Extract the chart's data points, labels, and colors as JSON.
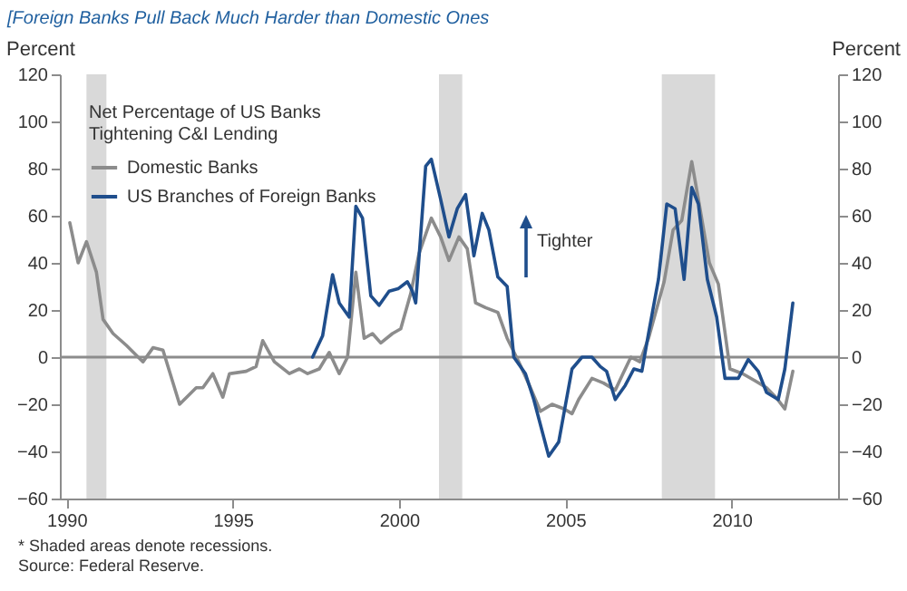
{
  "chart_data": {
    "type": "line",
    "title": "[Foreign Banks Pull Back Much Harder than Domestic Ones",
    "ylabel": "Percent",
    "y2label": "Percent",
    "legend_title": "Net Percentage of US Banks Tightening C&I Lending",
    "annotations": [
      "Tighter",
      "* Shaded areas denote recessions.",
      "Source: Federal Reserve."
    ],
    "xlim": [
      1989.8,
      2013.2
    ],
    "xticks": [
      1990,
      1995,
      2000,
      2005,
      2010
    ],
    "ylim": [
      -60,
      120
    ],
    "yticks": [
      -60,
      -40,
      -20,
      0,
      20,
      40,
      60,
      80,
      100,
      120
    ],
    "y2lim": [
      -60,
      120
    ],
    "y2ticks": [
      -60,
      -40,
      -20,
      0,
      20,
      40,
      60,
      80,
      100,
      120
    ],
    "grid": false,
    "legend": "top left",
    "marker": "none",
    "line_style": "solid",
    "ref_lines": [
      {
        "axis": "y",
        "value": 0,
        "color": "#8c8c8c"
      }
    ],
    "bands": [
      {
        "axis": "x",
        "from": 1990.6,
        "to": 1991.2,
        "color": "#d9d9d9"
      },
      {
        "axis": "x",
        "from": 2001.2,
        "to": 2001.9,
        "color": "#d9d9d9"
      },
      {
        "axis": "x",
        "from": 2007.9,
        "to": 2009.5,
        "color": "#d9d9d9"
      }
    ],
    "series": [
      {
        "name": "Domestic Banks",
        "color": "#8c8c8c",
        "x": [
          1990.1,
          1990.35,
          1990.6,
          1990.9,
          1991.1,
          1991.4,
          1991.8,
          1992.3,
          1992.6,
          1992.9,
          1993.4,
          1993.9,
          1994.1,
          1994.4,
          1994.7,
          1994.9,
          1995.4,
          1995.7,
          1995.9,
          1996.25,
          1996.7,
          1997.0,
          1997.25,
          1997.6,
          1997.9,
          1998.2,
          1998.45,
          1998.7,
          1998.95,
          1999.2,
          1999.45,
          1999.8,
          2000.05,
          2000.35,
          2000.6,
          2000.97,
          2001.25,
          2001.5,
          2001.8,
          2002.05,
          2002.3,
          2002.6,
          2002.97,
          2003.25,
          2003.6,
          2003.95,
          2004.25,
          2004.6,
          2004.97,
          2005.2,
          2005.4,
          2005.8,
          2006.15,
          2006.5,
          2006.7,
          2006.97,
          2007.24,
          2007.5,
          2007.97,
          2008.24,
          2008.5,
          2008.8,
          2009.0,
          2009.33,
          2009.6,
          2009.95,
          2010.33,
          2010.7,
          2011.05,
          2011.33,
          2011.6,
          2011.84
        ],
        "values": [
          57,
          40,
          49,
          36,
          16,
          10,
          5,
          -2,
          4,
          3,
          -20,
          -13,
          -13,
          -7,
          -17,
          -7,
          -6,
          -4,
          7,
          -2,
          -7,
          -5,
          -7,
          -5,
          2,
          -7,
          0,
          36,
          8,
          10,
          6,
          10,
          12,
          27,
          44,
          59,
          51,
          41,
          51,
          46,
          23,
          21,
          19,
          8,
          -2,
          -13,
          -23,
          -20,
          -22,
          -24,
          -18,
          -9,
          -11,
          -14,
          -8,
          0,
          -2,
          8,
          32,
          54,
          58,
          83,
          67,
          40,
          31,
          -5,
          -7,
          -10,
          -13,
          -17,
          -22,
          -6
        ]
      },
      {
        "name": "US Branches of Foreign Banks",
        "color": "#1f4e8c",
        "x": [
          1997.4,
          1997.7,
          1998.0,
          1998.2,
          1998.5,
          1998.7,
          1998.9,
          1999.15,
          1999.4,
          1999.7,
          1999.97,
          2000.25,
          2000.4,
          2000.5,
          2000.8,
          2000.97,
          2001.25,
          2001.5,
          2001.75,
          2002.0,
          2002.25,
          2002.5,
          2002.7,
          2002.97,
          2003.25,
          2003.45,
          2003.8,
          2004.05,
          2004.5,
          2004.8,
          2005.2,
          2005.5,
          2005.8,
          2006.05,
          2006.24,
          2006.5,
          2006.8,
          2007.06,
          2007.3,
          2007.5,
          2007.8,
          2008.05,
          2008.3,
          2008.57,
          2008.8,
          2009.0,
          2009.27,
          2009.55,
          2009.8,
          2010.2,
          2010.5,
          2010.8,
          2011.05,
          2011.4,
          2011.6,
          2011.84
        ],
        "values": [
          0,
          9,
          35,
          23,
          17,
          64,
          59,
          26,
          22,
          28,
          29,
          32,
          28,
          23,
          81,
          84,
          67,
          51,
          63,
          69,
          43,
          61,
          54,
          34,
          30,
          0,
          -7,
          -18,
          -42,
          -36,
          -5,
          0,
          0,
          -4,
          -6,
          -18,
          -12,
          -5,
          -6,
          10,
          33,
          65,
          63,
          33,
          72,
          65,
          33,
          17,
          -9,
          -9,
          -1,
          -6,
          -15,
          -18,
          -5,
          23
        ]
      }
    ]
  }
}
